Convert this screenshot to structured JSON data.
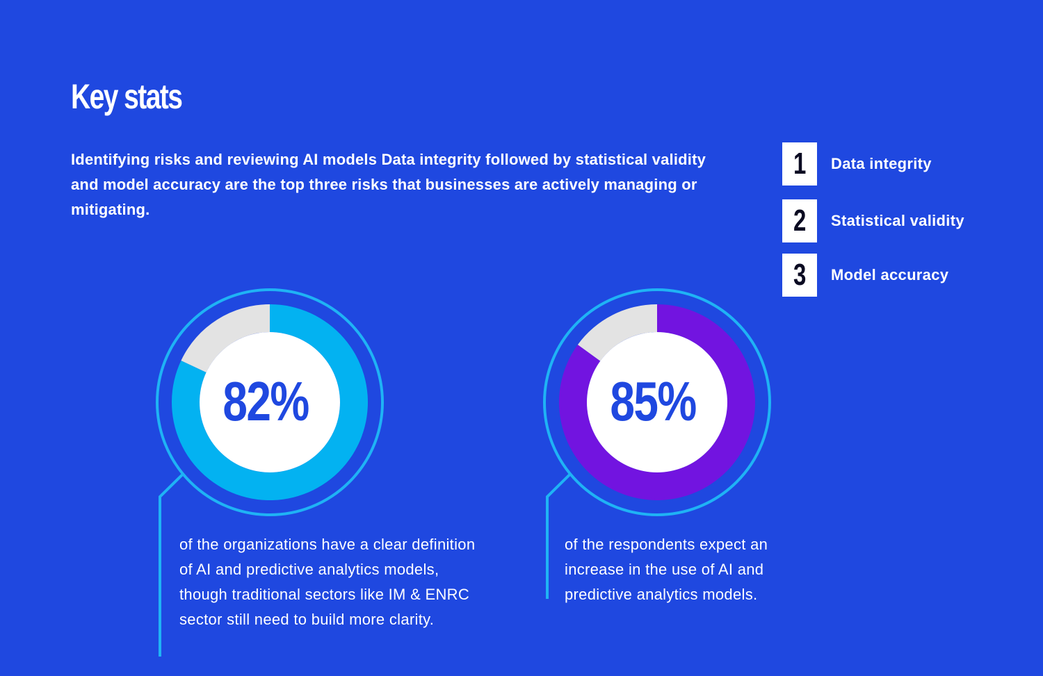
{
  "header": {
    "title": "Key stats",
    "intro": "Identifying risks and reviewing AI models Data integrity followed by statistical validity and model accuracy are the top three risks that businesses are actively managing or mitigating."
  },
  "risks": [
    {
      "rank": "1",
      "label": "Data integrity"
    },
    {
      "rank": "2",
      "label": "Statistical validity"
    },
    {
      "rank": "3",
      "label": "Model accuracy"
    }
  ],
  "colors": {
    "background": "#1f48e0",
    "ring_outline": "#1fb3f5",
    "remainder": "#e3e3e3",
    "value_text": "#1f48e0"
  },
  "chart_data": [
    {
      "type": "pie",
      "label": "82%",
      "values": [
        82,
        18
      ],
      "colors": [
        "#03b2f1",
        "#e3e3e3"
      ],
      "description": "of the organizations have a clear definition of AI and predictive analytics models, though traditional sectors like IM & ENRC sector still need to build more clarity."
    },
    {
      "type": "pie",
      "label": "85%",
      "values": [
        85,
        15
      ],
      "colors": [
        "#7214e0",
        "#e3e3e3"
      ],
      "description": "of the respondents expect an increase in the use of AI and predictive analytics models."
    }
  ]
}
